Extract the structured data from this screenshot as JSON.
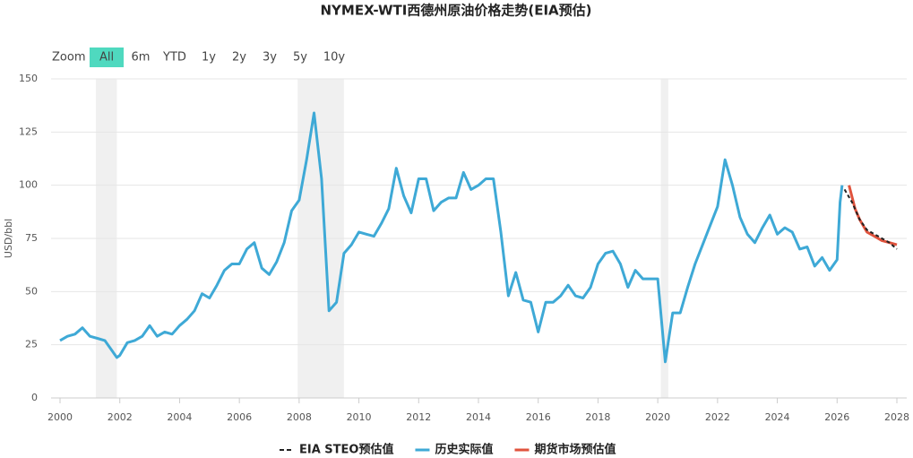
{
  "chart_data": {
    "type": "line",
    "title": "NYMEX-WTI西德州原油价格走势(EIA预估)",
    "y_label": "USD/bbl",
    "range_selector": {
      "label": "Zoom",
      "buttons": [
        "All",
        "6m",
        "YTD",
        "1y",
        "2y",
        "3y",
        "5y",
        "10y"
      ],
      "selected": 0
    },
    "xlim": [
      1999.7,
      2028.33
    ],
    "xticks": [
      2000,
      2002,
      2004,
      2006,
      2008,
      2010,
      2012,
      2014,
      2016,
      2018,
      2020,
      2022,
      2024,
      2026,
      2028
    ],
    "ylim": [
      0,
      150
    ],
    "yticks": [
      0,
      25,
      50,
      75,
      100,
      125,
      150
    ],
    "grid": true,
    "bands": [
      [
        2001.2,
        2001.9
      ],
      [
        2007.95,
        2009.5
      ],
      [
        2020.1,
        2020.35
      ]
    ],
    "series": [
      {
        "name": "EIA STEO预估值",
        "color": "#222222",
        "dash": true,
        "x": [
          2026.25,
          2026.5,
          2026.75,
          2027.0,
          2027.25,
          2027.5,
          2027.75,
          2028.0
        ],
        "values": [
          98,
          92,
          84,
          79,
          77,
          75,
          73,
          70
        ]
      },
      {
        "name": "历史实际值",
        "color": "#3ea9d6",
        "dash": false,
        "x": [
          2000.0,
          2000.25,
          2000.5,
          2000.75,
          2001.0,
          2001.25,
          2001.5,
          2001.75,
          2001.9,
          2002.0,
          2002.25,
          2002.5,
          2002.75,
          2003.0,
          2003.25,
          2003.5,
          2003.75,
          2004.0,
          2004.25,
          2004.5,
          2004.75,
          2005.0,
          2005.25,
          2005.5,
          2005.75,
          2006.0,
          2006.25,
          2006.5,
          2006.75,
          2007.0,
          2007.25,
          2007.5,
          2007.75,
          2008.0,
          2008.25,
          2008.5,
          2008.75,
          2009.0,
          2009.25,
          2009.5,
          2009.75,
          2010.0,
          2010.25,
          2010.5,
          2010.75,
          2011.0,
          2011.25,
          2011.5,
          2011.75,
          2012.0,
          2012.25,
          2012.5,
          2012.75,
          2013.0,
          2013.25,
          2013.5,
          2013.75,
          2014.0,
          2014.25,
          2014.5,
          2014.75,
          2015.0,
          2015.25,
          2015.5,
          2015.75,
          2016.0,
          2016.25,
          2016.5,
          2016.75,
          2017.0,
          2017.25,
          2017.5,
          2017.75,
          2018.0,
          2018.25,
          2018.5,
          2018.75,
          2019.0,
          2019.25,
          2019.5,
          2019.75,
          2020.0,
          2020.25,
          2020.5,
          2020.75,
          2021.0,
          2021.25,
          2021.5,
          2021.75,
          2022.0,
          2022.25,
          2022.5,
          2022.75,
          2023.0,
          2023.25,
          2023.5,
          2023.75,
          2024.0,
          2024.25,
          2024.5,
          2024.75,
          2025.0,
          2025.25,
          2025.5,
          2025.75,
          2026.0,
          2026.1,
          2026.17
        ],
        "values": [
          27,
          29,
          30,
          33,
          29,
          28,
          27,
          22,
          19,
          20,
          26,
          27,
          29,
          34,
          29,
          31,
          30,
          34,
          37,
          41,
          49,
          47,
          53,
          60,
          63,
          63,
          70,
          73,
          61,
          58,
          64,
          73,
          88,
          93,
          112,
          134,
          103,
          41,
          45,
          68,
          72,
          78,
          77,
          76,
          82,
          89,
          108,
          95,
          87,
          103,
          103,
          88,
          92,
          94,
          94,
          106,
          98,
          100,
          103,
          103,
          78,
          48,
          59,
          46,
          45,
          31,
          45,
          45,
          48,
          53,
          48,
          47,
          52,
          63,
          68,
          69,
          63,
          52,
          60,
          56,
          56,
          56,
          17,
          40,
          40,
          52,
          63,
          72,
          81,
          90,
          112,
          100,
          85,
          77,
          73,
          80,
          86,
          77,
          80,
          78,
          70,
          71,
          62,
          66,
          60,
          65,
          92,
          100
        ]
      },
      {
        "name": "期货市场预估值",
        "color": "#e0533d",
        "dash": false,
        "x": [
          2026.4,
          2026.6,
          2026.75,
          2027.0,
          2027.25,
          2027.5,
          2027.75,
          2028.0
        ],
        "values": [
          100,
          89,
          84,
          78,
          76,
          74,
          73,
          72
        ]
      }
    ]
  }
}
